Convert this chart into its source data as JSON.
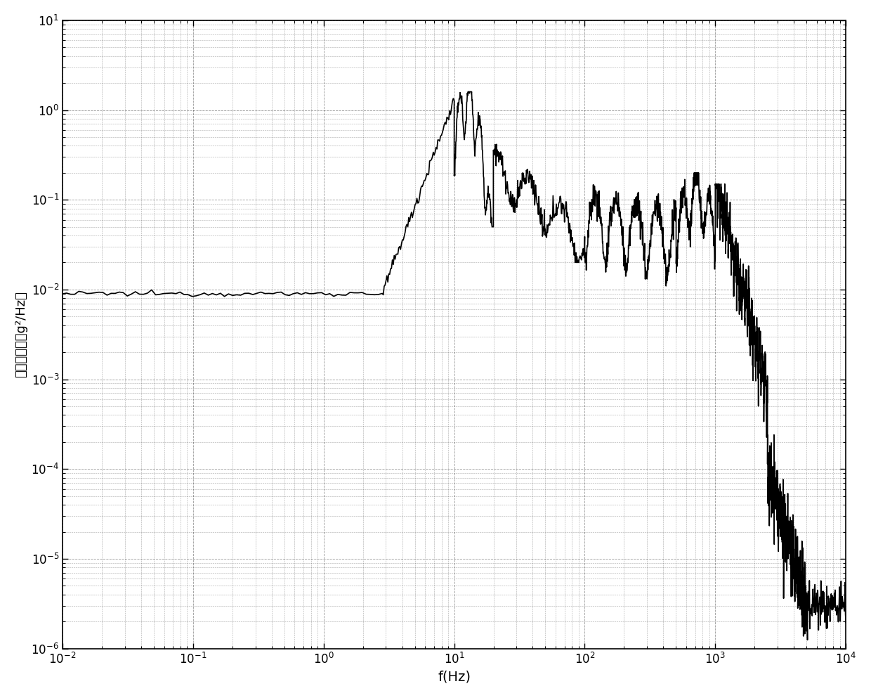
{
  "xlim": [
    0.01,
    10000
  ],
  "ylim": [
    1e-06,
    10
  ],
  "xlabel": "f(Hz)",
  "ylabel": "功率谱密度（g²/Hz）",
  "line_color": "#000000",
  "line_width": 1.2,
  "background_color": "#ffffff",
  "grid_color": "#000000",
  "grid_alpha": 0.4,
  "grid_style": "--",
  "grid_linewidth": 0.6,
  "xlabel_fontsize": 14,
  "ylabel_fontsize": 13,
  "tick_fontsize": 12
}
